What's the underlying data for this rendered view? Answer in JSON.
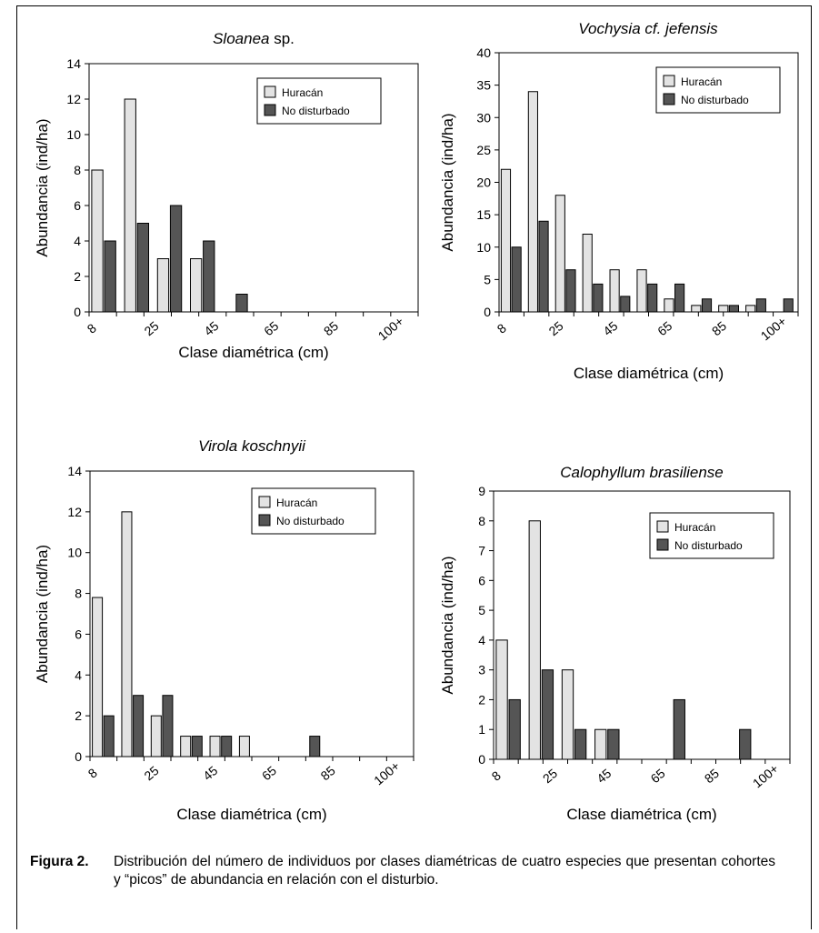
{
  "legend_labels": [
    "Huracán",
    "No disturbado"
  ],
  "colors": {
    "huracan": "#e3e3e3",
    "no_disturbado": "#555555",
    "axis": "#000000"
  },
  "caption": {
    "label": "Figura 2.",
    "text": "Distribución del número de individuos por clases diamétricas de cuatro especies que presentan cohortes y “picos” de abundancia en relación con el disturbio."
  },
  "chart_data": [
    {
      "type": "bar",
      "title": "Sloanea sp.",
      "title_italic_part": "Sloanea",
      "title_plain_part": " sp.",
      "xlabel": "Clase diamétrica (cm)",
      "ylabel": "Abundancia (ind/ha)",
      "ylim": [
        0,
        14
      ],
      "yticks": [
        0,
        2,
        4,
        6,
        8,
        10,
        12,
        14
      ],
      "xtick_labels": [
        "8",
        "25",
        "45",
        "65",
        "85",
        "100+"
      ],
      "legend_position": "top-right",
      "series": [
        {
          "name": "Huracán",
          "values": [
            8,
            12,
            3,
            3,
            0,
            0,
            0,
            0,
            0,
            0
          ]
        },
        {
          "name": "No disturbado",
          "values": [
            4,
            5,
            6,
            4,
            1,
            0,
            0,
            0,
            0,
            0
          ]
        }
      ]
    },
    {
      "type": "bar",
      "title": "Vochysia cf. jefensis",
      "xlabel": "Clase diamétrica (cm)",
      "ylabel": "Abundancia (ind/ha)",
      "ylim": [
        0,
        40
      ],
      "yticks": [
        0,
        5,
        10,
        15,
        20,
        25,
        30,
        35,
        40
      ],
      "xtick_labels": [
        "8",
        "25",
        "45",
        "65",
        "85",
        "100+"
      ],
      "legend_position": "top-right",
      "series": [
        {
          "name": "Huracán",
          "values": [
            22,
            34,
            18,
            12,
            6.5,
            6.5,
            2,
            1,
            1,
            1,
            0
          ]
        },
        {
          "name": "No disturbado",
          "values": [
            10,
            14,
            6.5,
            4.3,
            2.4,
            4.3,
            4.3,
            2,
            1,
            2,
            2
          ]
        }
      ]
    },
    {
      "type": "bar",
      "title": "Virola koschnyii",
      "xlabel": "Clase diamétrica (cm)",
      "ylabel": "Abundancia (ind/ha)",
      "ylim": [
        0,
        14
      ],
      "yticks": [
        0,
        2,
        4,
        6,
        8,
        10,
        12,
        14
      ],
      "xtick_labels": [
        "8",
        "25",
        "45",
        "65",
        "85",
        "100+"
      ],
      "legend_position": "top-right",
      "series": [
        {
          "name": "Huracán",
          "values": [
            7.8,
            12,
            2,
            1,
            1,
            1,
            0,
            0,
            0,
            0,
            0
          ]
        },
        {
          "name": "No disturbado",
          "values": [
            2,
            3,
            3,
            1,
            1,
            0,
            0,
            1,
            0,
            0,
            0
          ]
        }
      ]
    },
    {
      "type": "bar",
      "title": "Calophyllum brasiliense",
      "xlabel": "Clase diamétrica (cm)",
      "ylabel": "Abundancia (ind/ha)",
      "ylim": [
        0,
        9
      ],
      "yticks": [
        0,
        1,
        2,
        3,
        4,
        5,
        6,
        7,
        8,
        9
      ],
      "xtick_labels": [
        "8",
        "25",
        "45",
        "65",
        "85",
        "100+"
      ],
      "legend_position": "top-right",
      "series": [
        {
          "name": "Huracán",
          "values": [
            4,
            8,
            3,
            1,
            0,
            0,
            0,
            0,
            0
          ]
        },
        {
          "name": "No disturbado",
          "values": [
            2,
            3,
            1,
            1,
            0,
            2,
            0,
            1,
            0
          ]
        }
      ]
    }
  ]
}
